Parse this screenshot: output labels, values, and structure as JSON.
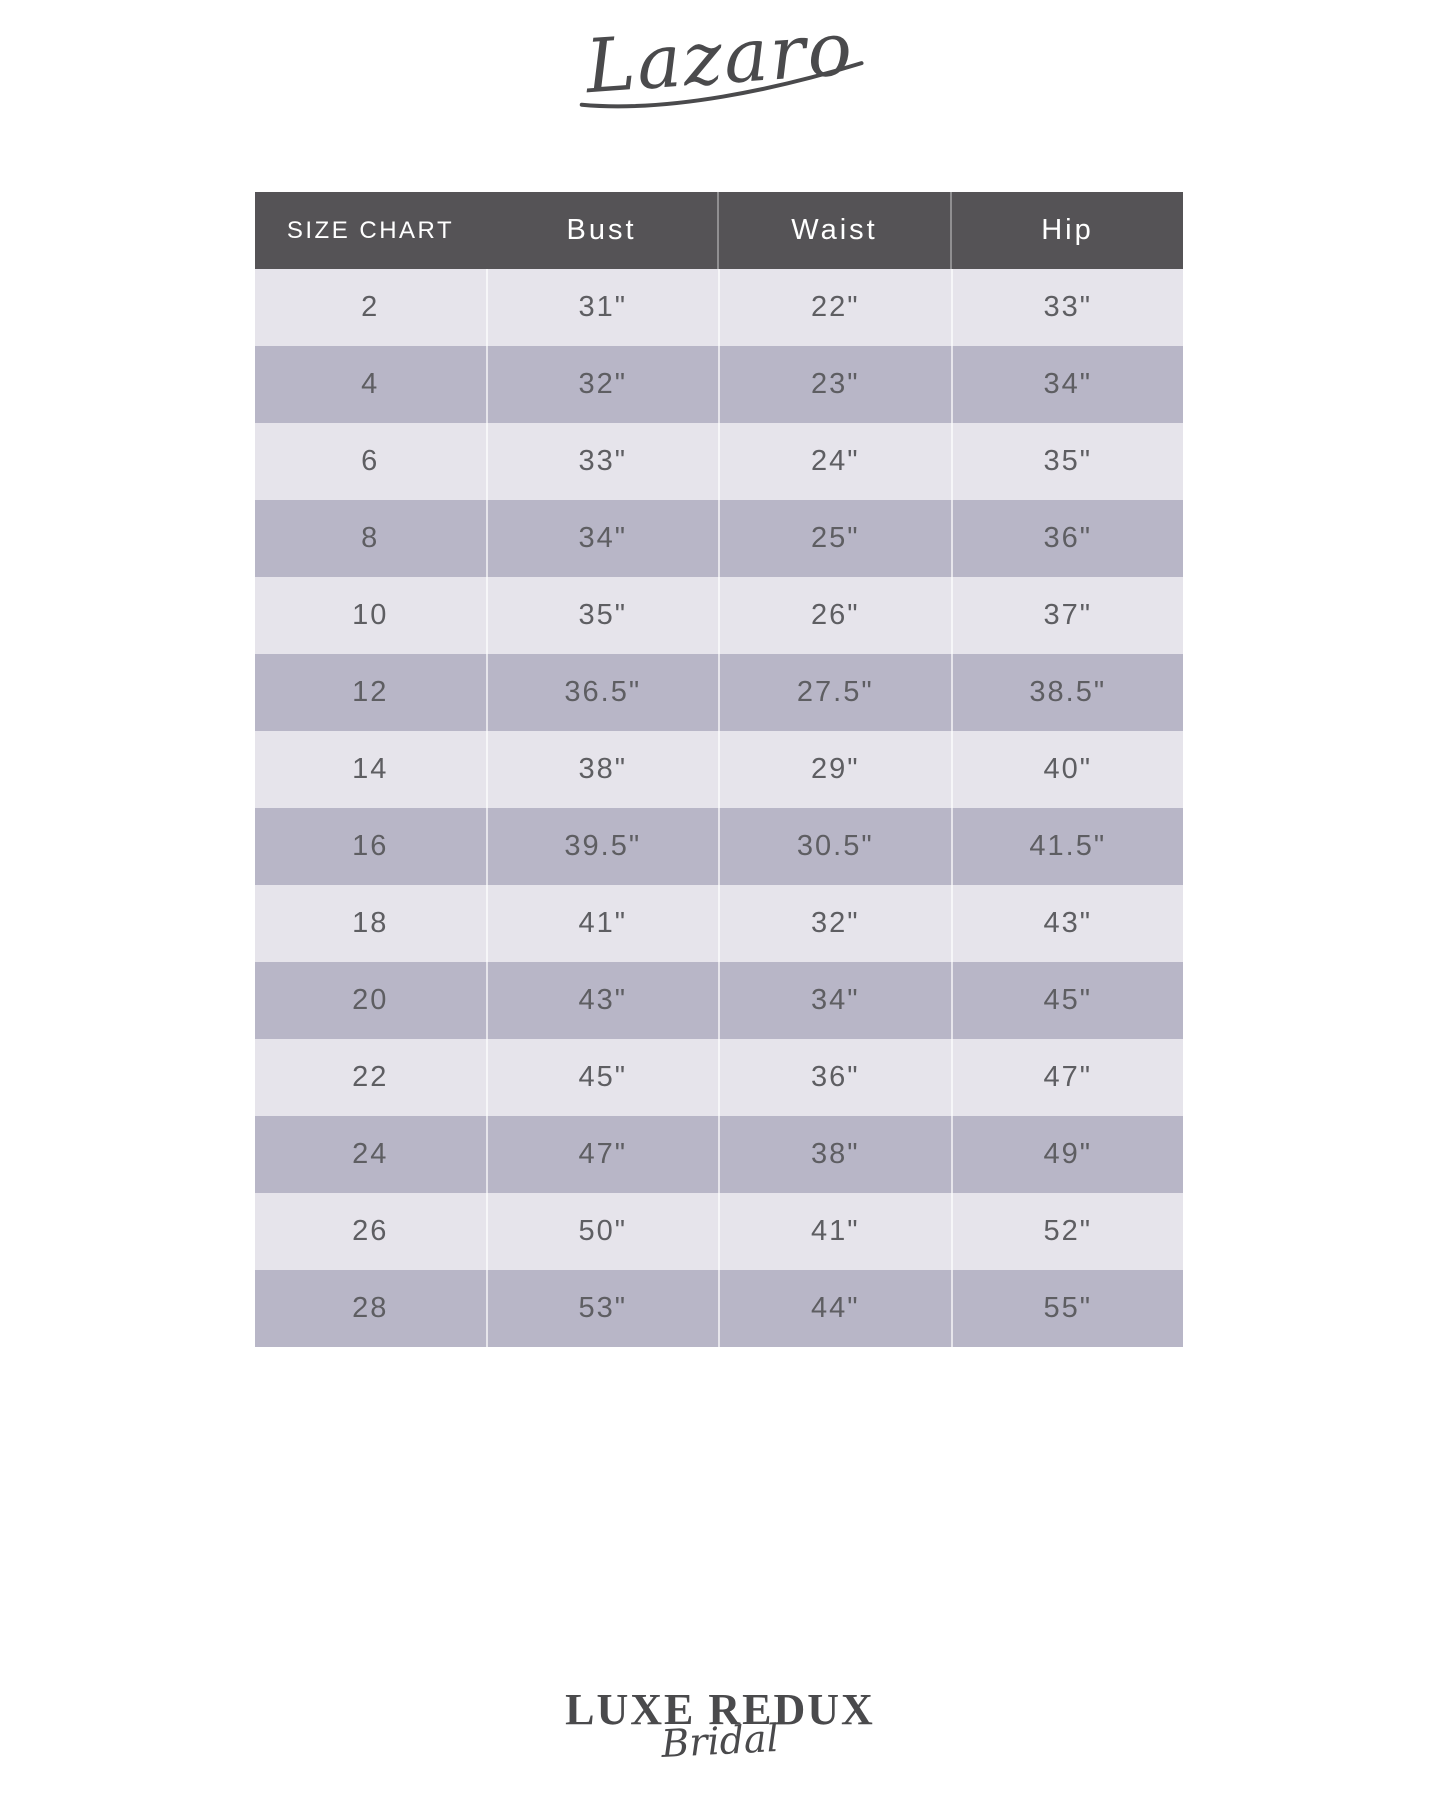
{
  "brand": {
    "name": "Lazaro"
  },
  "chart_data": {
    "type": "table",
    "columns": [
      "SIZE CHART",
      "Bust",
      "Waist",
      "Hip"
    ],
    "rows": [
      [
        "2",
        "31\"",
        "22\"",
        "33\""
      ],
      [
        "4",
        "32\"",
        "23\"",
        "34\""
      ],
      [
        "6",
        "33\"",
        "24\"",
        "35\""
      ],
      [
        "8",
        "34\"",
        "25\"",
        "36\""
      ],
      [
        "10",
        "35\"",
        "26\"",
        "37\""
      ],
      [
        "12",
        "36.5\"",
        "27.5\"",
        "38.5\""
      ],
      [
        "14",
        "38\"",
        "29\"",
        "40\""
      ],
      [
        "16",
        "39.5\"",
        "30.5\"",
        "41.5\""
      ],
      [
        "18",
        "41\"",
        "32\"",
        "43\""
      ],
      [
        "20",
        "43\"",
        "34\"",
        "45\""
      ],
      [
        "22",
        "45\"",
        "36\"",
        "47\""
      ],
      [
        "24",
        "47\"",
        "38\"",
        "49\""
      ],
      [
        "26",
        "50\"",
        "41\"",
        "52\""
      ],
      [
        "28",
        "53\"",
        "44\"",
        "55\""
      ]
    ]
  },
  "footer": {
    "name": "LUXE REDUX",
    "tagline": "Bridal"
  },
  "colors": {
    "header_bg": "#555356",
    "header_text": "#ffffff",
    "row_light": "#e6e4eb",
    "row_dark": "#b8b6c7",
    "body_text": "#5e5e62",
    "logo_text": "#4a4a4c"
  }
}
